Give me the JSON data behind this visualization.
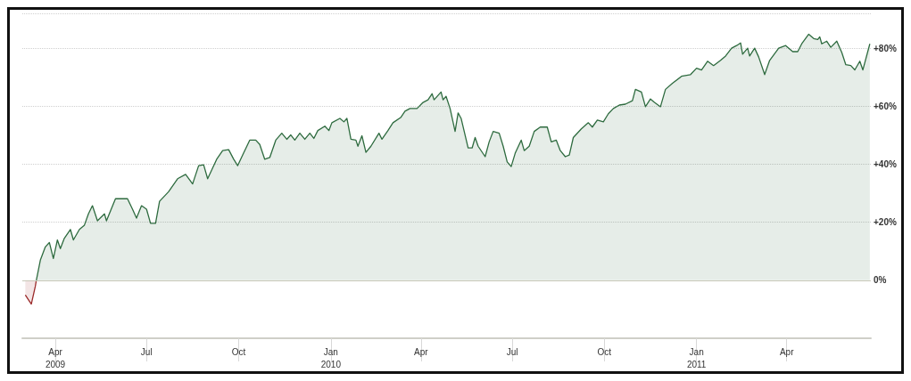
{
  "chart_data": {
    "type": "area",
    "grid": "y",
    "line_style": "solid",
    "marker": "none",
    "xlim": [
      "2009-02-27",
      "2011-06-24"
    ],
    "ylim": [
      -20,
      92
    ],
    "xticks": [
      {
        "value": "2009-04-01",
        "label": "Apr\n2009"
      },
      {
        "value": "2009-07-01",
        "label": "Jul"
      },
      {
        "value": "2009-10-01",
        "label": "Oct"
      },
      {
        "value": "2010-01-01",
        "label": "Jan\n2010"
      },
      {
        "value": "2010-04-01",
        "label": "Apr"
      },
      {
        "value": "2010-07-01",
        "label": "Jul"
      },
      {
        "value": "2010-10-01",
        "label": "Oct"
      },
      {
        "value": "2011-01-01",
        "label": "Jan\n2011"
      },
      {
        "value": "2011-04-01",
        "label": "Apr"
      }
    ],
    "yticks": [
      {
        "value": 0,
        "label": "0%"
      },
      {
        "value": 20,
        "label": "+20%"
      },
      {
        "value": 40,
        "label": "+40%"
      },
      {
        "value": 60,
        "label": "+60%"
      },
      {
        "value": 80,
        "label": "+80%"
      }
    ],
    "ref_lines": [
      {
        "axis": "y",
        "value": 0,
        "label": null,
        "color": "#c8c8b8"
      }
    ],
    "series": [
      {
        "color": "#9b2a2a",
        "x": [
          "2009-03-02",
          "2009-03-08",
          "2009-03-12",
          "2009-03-13"
        ],
        "values": [
          -5.1,
          -8.2,
          -2.1,
          0
        ]
      },
      {
        "color": "#2e6b3f",
        "x": [
          "2009-03-13",
          "2009-03-17",
          "2009-03-22",
          "2009-03-26",
          "2009-03-30",
          "2009-04-03",
          "2009-04-06",
          "2009-04-10",
          "2009-04-16",
          "2009-04-19",
          "2009-04-25",
          "2009-04-30",
          "2009-05-04",
          "2009-05-08",
          "2009-05-13",
          "2009-05-20",
          "2009-05-22",
          "2009-05-31",
          "2009-06-12",
          "2009-06-17",
          "2009-06-21",
          "2009-06-26",
          "2009-07-01",
          "2009-07-05",
          "2009-07-10",
          "2009-07-14",
          "2009-07-23",
          "2009-08-01",
          "2009-08-09",
          "2009-08-16",
          "2009-08-22",
          "2009-08-27",
          "2009-08-31",
          "2009-09-09",
          "2009-09-15",
          "2009-09-21",
          "2009-09-26",
          "2009-09-30",
          "2009-10-05",
          "2009-10-12",
          "2009-10-18",
          "2009-10-22",
          "2009-10-27",
          "2009-11-01",
          "2009-11-07",
          "2009-11-13",
          "2009-11-18",
          "2009-11-22",
          "2009-11-26",
          "2009-12-01",
          "2009-12-06",
          "2009-12-11",
          "2009-12-15",
          "2009-12-19",
          "2009-12-26",
          "2009-12-30",
          "2010-01-02",
          "2010-01-10",
          "2010-01-14",
          "2010-01-17",
          "2010-01-21",
          "2010-01-26",
          "2010-01-28",
          "2010-02-01",
          "2010-02-05",
          "2010-02-10",
          "2010-02-18",
          "2010-02-21",
          "2010-02-27",
          "2010-03-04",
          "2010-03-12",
          "2010-03-16",
          "2010-03-21",
          "2010-03-28",
          "2010-04-03",
          "2010-04-08",
          "2010-04-12",
          "2010-04-14",
          "2010-04-21",
          "2010-04-23",
          "2010-04-26",
          "2010-04-30",
          "2010-05-05",
          "2010-05-08",
          "2010-05-11",
          "2010-05-18",
          "2010-05-22",
          "2010-05-25",
          "2010-05-28",
          "2010-06-04",
          "2010-06-08",
          "2010-06-12",
          "2010-06-18",
          "2010-06-22",
          "2010-06-26",
          "2010-06-30",
          "2010-07-04",
          "2010-07-10",
          "2010-07-13",
          "2010-07-18",
          "2010-07-23",
          "2010-07-29",
          "2010-08-05",
          "2010-08-09",
          "2010-08-14",
          "2010-08-18",
          "2010-08-23",
          "2010-08-27",
          "2010-08-31",
          "2010-09-08",
          "2010-09-15",
          "2010-09-19",
          "2010-09-24",
          "2010-09-30",
          "2010-10-05",
          "2010-10-10",
          "2010-10-16",
          "2010-10-22",
          "2010-10-29",
          "2010-11-01",
          "2010-11-07",
          "2010-11-11",
          "2010-11-16",
          "2010-11-20",
          "2010-11-26",
          "2010-12-01",
          "2010-12-08",
          "2010-12-17",
          "2010-12-26",
          "2011-01-01",
          "2011-01-06",
          "2011-01-12",
          "2011-01-18",
          "2011-01-25",
          "2011-01-30",
          "2011-02-05",
          "2011-02-10",
          "2011-02-14",
          "2011-02-16",
          "2011-02-21",
          "2011-02-23",
          "2011-02-28",
          "2011-03-04",
          "2011-03-10",
          "2011-03-15",
          "2011-03-24",
          "2011-03-31",
          "2011-04-07",
          "2011-04-12",
          "2011-04-16",
          "2011-04-23",
          "2011-04-28",
          "2011-05-02",
          "2011-05-04",
          "2011-05-06",
          "2011-05-11",
          "2011-05-15",
          "2011-05-21",
          "2011-05-26",
          "2011-05-30",
          "2011-06-04",
          "2011-06-08",
          "2011-06-13",
          "2011-06-16",
          "2011-06-23"
        ],
        "values": [
          0,
          6.9,
          11.5,
          13.0,
          7.5,
          13.9,
          10.9,
          14.5,
          17.5,
          13.9,
          17.5,
          19.0,
          22.9,
          25.7,
          20.5,
          22.9,
          20.5,
          28.1,
          28.1,
          24.5,
          21.4,
          25.7,
          24.5,
          19.6,
          19.6,
          27.2,
          30.5,
          35.0,
          36.5,
          33.2,
          39.5,
          39.8,
          35.0,
          41.7,
          44.7,
          45.0,
          41.7,
          39.5,
          43.2,
          48.3,
          48.3,
          46.8,
          41.7,
          42.3,
          48.3,
          50.7,
          48.6,
          50.1,
          48.3,
          50.7,
          48.6,
          50.7,
          48.9,
          51.6,
          53.1,
          51.6,
          54.3,
          55.8,
          54.6,
          55.8,
          48.6,
          48.3,
          46.2,
          49.8,
          44.1,
          46.2,
          50.7,
          48.6,
          51.6,
          54.3,
          56.2,
          58.3,
          59.2,
          59.2,
          61.3,
          62.2,
          64.3,
          62.2,
          64.9,
          62.2,
          63.4,
          59.2,
          51.3,
          57.7,
          55.8,
          45.6,
          45.6,
          49.2,
          46.2,
          42.6,
          47.7,
          51.3,
          50.7,
          46.2,
          40.8,
          39.2,
          43.8,
          48.3,
          44.7,
          46.2,
          51.3,
          52.8,
          52.8,
          47.7,
          48.3,
          44.7,
          42.6,
          43.2,
          49.2,
          52.2,
          54.3,
          52.8,
          55.2,
          54.6,
          57.4,
          59.2,
          60.4,
          60.7,
          61.9,
          65.8,
          64.9,
          59.8,
          62.5,
          61.3,
          59.8,
          65.8,
          67.9,
          70.3,
          70.9,
          73.1,
          72.5,
          75.5,
          74.0,
          75.8,
          77.3,
          80.0,
          80.9,
          81.8,
          77.9,
          80.0,
          77.3,
          80.0,
          77.0,
          70.9,
          75.8,
          80.0,
          80.9,
          78.8,
          78.8,
          81.5,
          84.8,
          83.3,
          83.0,
          83.9,
          81.5,
          82.4,
          80.3,
          82.4,
          78.5,
          74.3,
          74.0,
          72.5,
          75.5,
          72.5,
          81.5
        ]
      }
    ]
  }
}
